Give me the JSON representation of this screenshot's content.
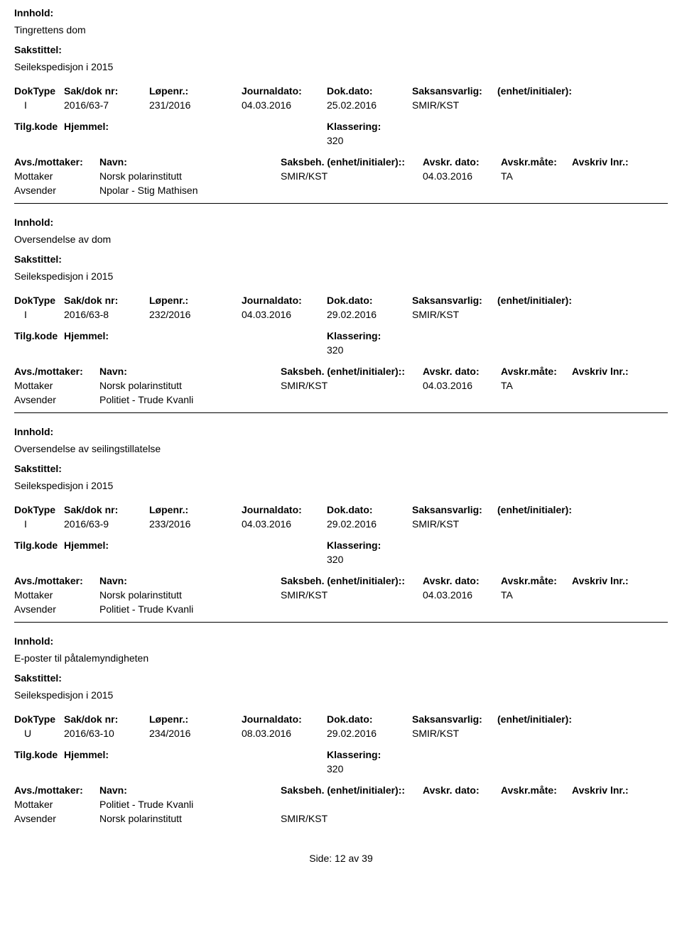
{
  "labels": {
    "innhold": "Innhold:",
    "sakstittel": "Sakstittel:",
    "doktype": "DokType",
    "saknr": "Sak/dok nr:",
    "lopenr": "Løpenr.:",
    "journaldato": "Journaldato:",
    "dokdato": "Dok.dato:",
    "saksansvarlig": "Saksansvarlig:",
    "enhetinitialer": "(enhet/initialer):",
    "tilgkode": "Tilg.kode",
    "hjemmel": "Hjemmel:",
    "klassering": "Klassering:",
    "avsmottaker": "Avs./mottaker:",
    "navn": "Navn:",
    "saksbeh": "Saksbeh.",
    "saksbeh_enhet": "(enhet/initialer):",
    "avskrdato": "Avskr. dato:",
    "avskrmate": "Avskr.måte:",
    "avskrlnr": "Avskriv lnr.:",
    "mottaker": "Mottaker",
    "avsender": "Avsender",
    "side": "Side:",
    "av": "av"
  },
  "footer": {
    "page": "12",
    "total": "39"
  },
  "entries": [
    {
      "innhold": "Tingrettens dom",
      "sakstittel": "Seilekspedisjon i 2015",
      "doktype": "I",
      "saknr": "2016/63-7",
      "lopenr": "231/2016",
      "journaldato": "04.03.2016",
      "dokdato": "25.02.2016",
      "saksansvarlig": "SMIR/KST",
      "klassering": "320",
      "parties": [
        {
          "role": "Mottaker",
          "navn": "Norsk polarinstitutt",
          "saksbeh": "SMIR/KST",
          "avskrdato": "04.03.2016",
          "avskrmate": "TA"
        },
        {
          "role": "Avsender",
          "navn": "Npolar - Stig Mathisen",
          "saksbeh": "",
          "avskrdato": "",
          "avskrmate": ""
        }
      ],
      "show_party_header": false
    },
    {
      "innhold": "Oversendelse av dom",
      "sakstittel": "Seilekspedisjon i 2015",
      "doktype": "I",
      "saknr": "2016/63-8",
      "lopenr": "232/2016",
      "journaldato": "04.03.2016",
      "dokdato": "29.02.2016",
      "saksansvarlig": "SMIR/KST",
      "klassering": "320",
      "parties": [
        {
          "role": "Mottaker",
          "navn": "Norsk polarinstitutt",
          "saksbeh": "SMIR/KST",
          "avskrdato": "04.03.2016",
          "avskrmate": "TA"
        },
        {
          "role": "Avsender",
          "navn": "Politiet - Trude Kvanli",
          "saksbeh": "",
          "avskrdato": "",
          "avskrmate": ""
        }
      ],
      "show_party_header": false
    },
    {
      "innhold": "Oversendelse av seilingstillatelse",
      "sakstittel": "Seilekspedisjon i 2015",
      "doktype": "I",
      "saknr": "2016/63-9",
      "lopenr": "233/2016",
      "journaldato": "04.03.2016",
      "dokdato": "29.02.2016",
      "saksansvarlig": "SMIR/KST",
      "klassering": "320",
      "parties": [
        {
          "role": "Mottaker",
          "navn": "Norsk polarinstitutt",
          "saksbeh": "SMIR/KST",
          "avskrdato": "04.03.2016",
          "avskrmate": "TA"
        },
        {
          "role": "Avsender",
          "navn": "Politiet - Trude Kvanli",
          "saksbeh": "",
          "avskrdato": "",
          "avskrmate": ""
        }
      ],
      "show_party_header": true
    },
    {
      "innhold": "E-poster til påtalemyndigheten",
      "sakstittel": "Seilekspedisjon i 2015",
      "doktype": "U",
      "saknr": "2016/63-10",
      "lopenr": "234/2016",
      "journaldato": "08.03.2016",
      "dokdato": "29.02.2016",
      "saksansvarlig": "SMIR/KST",
      "klassering": "320",
      "parties": [
        {
          "role": "Mottaker",
          "navn": "Politiet - Trude Kvanli",
          "saksbeh": "",
          "avskrdato": "",
          "avskrmate": ""
        },
        {
          "role": "Avsender",
          "navn": "Norsk polarinstitutt",
          "saksbeh": "SMIR/KST",
          "avskrdato": "",
          "avskrmate": ""
        }
      ],
      "show_party_header": true
    }
  ]
}
